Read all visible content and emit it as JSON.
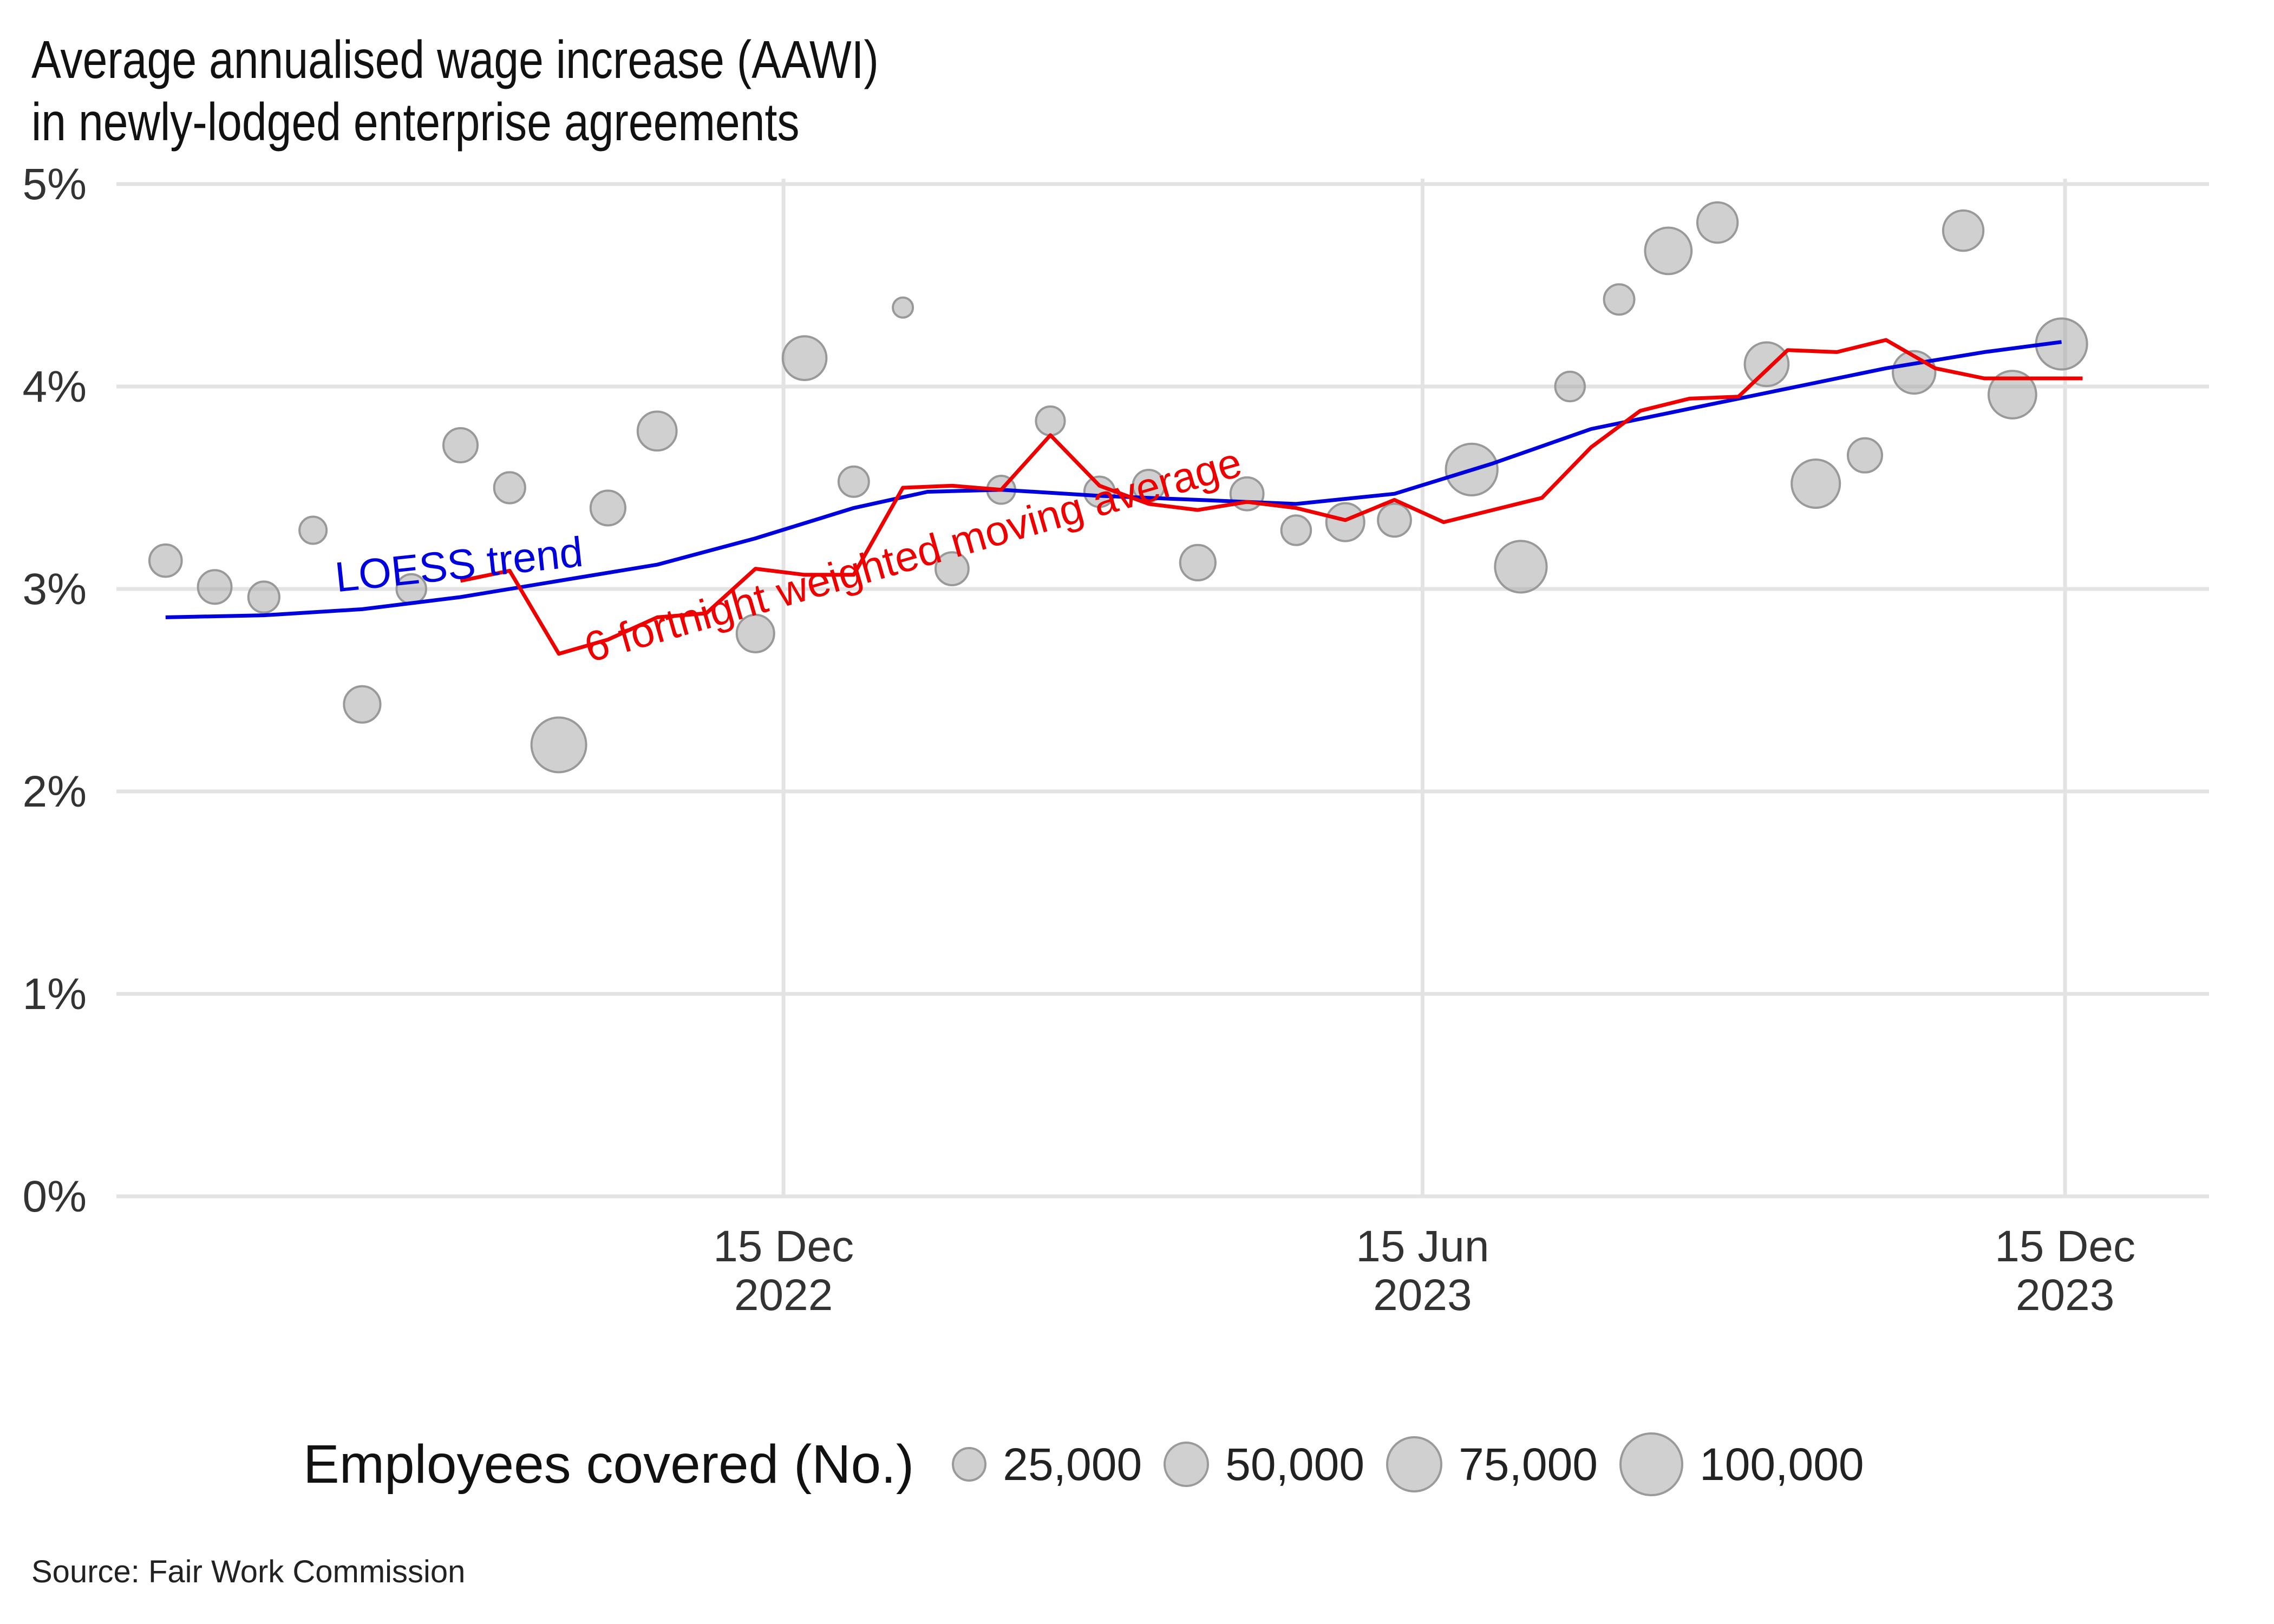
{
  "title_line1": "Average annualised wage increase (AAWI)",
  "title_line2": "in newly-lodged enterprise agreements",
  "caption": "Source: Fair Work Commission",
  "legend": {
    "title": "Employees covered (No.)",
    "items": [
      {
        "label": "25,000",
        "value": 25000
      },
      {
        "label": "50,000",
        "value": 50000
      },
      {
        "label": "75,000",
        "value": 75000
      },
      {
        "label": "100,000",
        "value": 100000
      }
    ]
  },
  "colors": {
    "loess": "#0000dd",
    "moving_average": "#ee0000",
    "points_fill": "#aaaaaa",
    "points_stroke": "#999999",
    "grid": "#e3e3e3"
  },
  "chart_data": {
    "type": "scatter",
    "title": "Average annualised wage increase (AAWI) in newly-lodged enterprise agreements",
    "ylabel": "",
    "xlabel": "",
    "ylim": [
      0,
      5
    ],
    "xlim": [
      "2022-06-08",
      "2024-01-25"
    ],
    "y_ticks": [
      {
        "value": 0,
        "label": "0%"
      },
      {
        "value": 1,
        "label": "1%"
      },
      {
        "value": 2,
        "label": "2%"
      },
      {
        "value": 3,
        "label": "3%"
      },
      {
        "value": 4,
        "label": "4%"
      },
      {
        "value": 5,
        "label": "5%"
      }
    ],
    "x_ticks": [
      {
        "value": "2022-12-15",
        "label": [
          "15 Dec",
          "2022"
        ]
      },
      {
        "value": "2023-06-15",
        "label": [
          "15 Jun",
          "2023"
        ]
      },
      {
        "value": "2023-12-15",
        "label": [
          "15 Dec",
          "2023"
        ]
      }
    ],
    "grid": true,
    "legend_position": "bottom",
    "points": [
      {
        "date": "2022-06-22",
        "aawi": 3.14,
        "employees": 15000
      },
      {
        "date": "2022-07-06",
        "aawi": 3.01,
        "employees": 17000
      },
      {
        "date": "2022-07-20",
        "aawi": 2.96,
        "employees": 13000
      },
      {
        "date": "2022-08-03",
        "aawi": 3.29,
        "employees": 8000
      },
      {
        "date": "2022-08-17",
        "aawi": 2.43,
        "employees": 22000
      },
      {
        "date": "2022-08-31",
        "aawi": 3.0,
        "employees": 11000
      },
      {
        "date": "2022-09-14",
        "aawi": 3.71,
        "employees": 18000
      },
      {
        "date": "2022-09-28",
        "aawi": 3.5,
        "employees": 13000
      },
      {
        "date": "2022-10-12",
        "aawi": 2.23,
        "employees": 70000
      },
      {
        "date": "2022-10-26",
        "aawi": 3.4,
        "employees": 19000
      },
      {
        "date": "2022-11-09",
        "aawi": 3.78,
        "employees": 27000
      },
      {
        "date": "2022-12-07",
        "aawi": 2.78,
        "employees": 24000
      },
      {
        "date": "2022-12-21",
        "aawi": 4.14,
        "employees": 38000
      },
      {
        "date": "2023-01-04",
        "aawi": 3.53,
        "employees": 12000
      },
      {
        "date": "2023-01-18",
        "aawi": 4.39,
        "employees": 2000
      },
      {
        "date": "2023-02-01",
        "aawi": 3.1,
        "employees": 16000
      },
      {
        "date": "2023-02-15",
        "aawi": 3.49,
        "employees": 9000
      },
      {
        "date": "2023-03-01",
        "aawi": 3.83,
        "employees": 10000
      },
      {
        "date": "2023-03-15",
        "aawi": 3.48,
        "employees": 12000
      },
      {
        "date": "2023-03-29",
        "aawi": 3.51,
        "employees": 14000
      },
      {
        "date": "2023-04-12",
        "aawi": 3.13,
        "employees": 20000
      },
      {
        "date": "2023-04-26",
        "aawi": 3.47,
        "employees": 16000
      },
      {
        "date": "2023-05-10",
        "aawi": 3.29,
        "employees": 11000
      },
      {
        "date": "2023-05-24",
        "aawi": 3.33,
        "employees": 25000
      },
      {
        "date": "2023-06-07",
        "aawi": 3.34,
        "employees": 16000
      },
      {
        "date": "2023-06-29",
        "aawi": 3.59,
        "employees": 60000
      },
      {
        "date": "2023-07-13",
        "aawi": 3.11,
        "employees": 60000
      },
      {
        "date": "2023-07-27",
        "aawi": 4.0,
        "employees": 11000
      },
      {
        "date": "2023-08-10",
        "aawi": 4.43,
        "employees": 12000
      },
      {
        "date": "2023-08-24",
        "aawi": 4.67,
        "employees": 45000
      },
      {
        "date": "2023-09-07",
        "aawi": 4.81,
        "employees": 30000
      },
      {
        "date": "2023-09-21",
        "aawi": 4.11,
        "employees": 38000
      },
      {
        "date": "2023-10-05",
        "aawi": 3.52,
        "employees": 50000
      },
      {
        "date": "2023-10-19",
        "aawi": 3.66,
        "employees": 18000
      },
      {
        "date": "2023-11-02",
        "aawi": 4.07,
        "employees": 35000
      },
      {
        "date": "2023-11-16",
        "aawi": 4.77,
        "employees": 30000
      },
      {
        "date": "2023-11-30",
        "aawi": 3.96,
        "employees": 48000
      },
      {
        "date": "2023-12-14",
        "aawi": 4.21,
        "employees": 58000
      }
    ],
    "series": [
      {
        "name": "LOESS trend",
        "label_anchor": {
          "date": "2022-09-14",
          "value": 3.05
        },
        "x": [
          "2022-06-22",
          "2022-07-20",
          "2022-08-17",
          "2022-09-14",
          "2022-10-12",
          "2022-11-09",
          "2022-12-07",
          "2023-01-04",
          "2023-01-25",
          "2023-02-15",
          "2023-03-15",
          "2023-04-12",
          "2023-05-10",
          "2023-06-07",
          "2023-07-05",
          "2023-08-02",
          "2023-08-30",
          "2023-09-27",
          "2023-10-25",
          "2023-11-22",
          "2023-12-14"
        ],
        "values": [
          2.86,
          2.87,
          2.9,
          2.96,
          3.04,
          3.12,
          3.25,
          3.4,
          3.48,
          3.49,
          3.46,
          3.44,
          3.42,
          3.47,
          3.62,
          3.79,
          3.89,
          3.99,
          4.09,
          4.17,
          4.22
        ]
      },
      {
        "name": "6 fortnight weighted moving average",
        "label_anchor": {
          "date": "2023-01-22",
          "value": 3.1
        },
        "x": [
          "2022-09-14",
          "2022-09-28",
          "2022-10-12",
          "2022-10-26",
          "2022-11-09",
          "2022-11-23",
          "2022-12-07",
          "2022-12-21",
          "2023-01-04",
          "2023-01-18",
          "2023-02-01",
          "2023-02-15",
          "2023-03-01",
          "2023-03-15",
          "2023-03-29",
          "2023-04-12",
          "2023-04-26",
          "2023-05-10",
          "2023-05-24",
          "2023-06-07",
          "2023-06-21",
          "2023-07-05",
          "2023-07-19",
          "2023-08-02",
          "2023-08-16",
          "2023-08-30",
          "2023-09-13",
          "2023-09-27",
          "2023-10-11",
          "2023-10-25",
          "2023-11-08",
          "2023-11-22",
          "2023-12-06",
          "2023-12-20"
        ],
        "values": [
          3.04,
          3.09,
          2.68,
          2.75,
          2.86,
          2.88,
          3.1,
          3.07,
          3.07,
          3.5,
          3.51,
          3.49,
          3.76,
          3.51,
          3.42,
          3.39,
          3.43,
          3.4,
          3.34,
          3.44,
          3.33,
          3.39,
          3.45,
          3.7,
          3.88,
          3.94,
          3.95,
          4.18,
          4.17,
          4.23,
          4.09,
          4.04,
          4.04,
          4.04
        ]
      }
    ]
  }
}
